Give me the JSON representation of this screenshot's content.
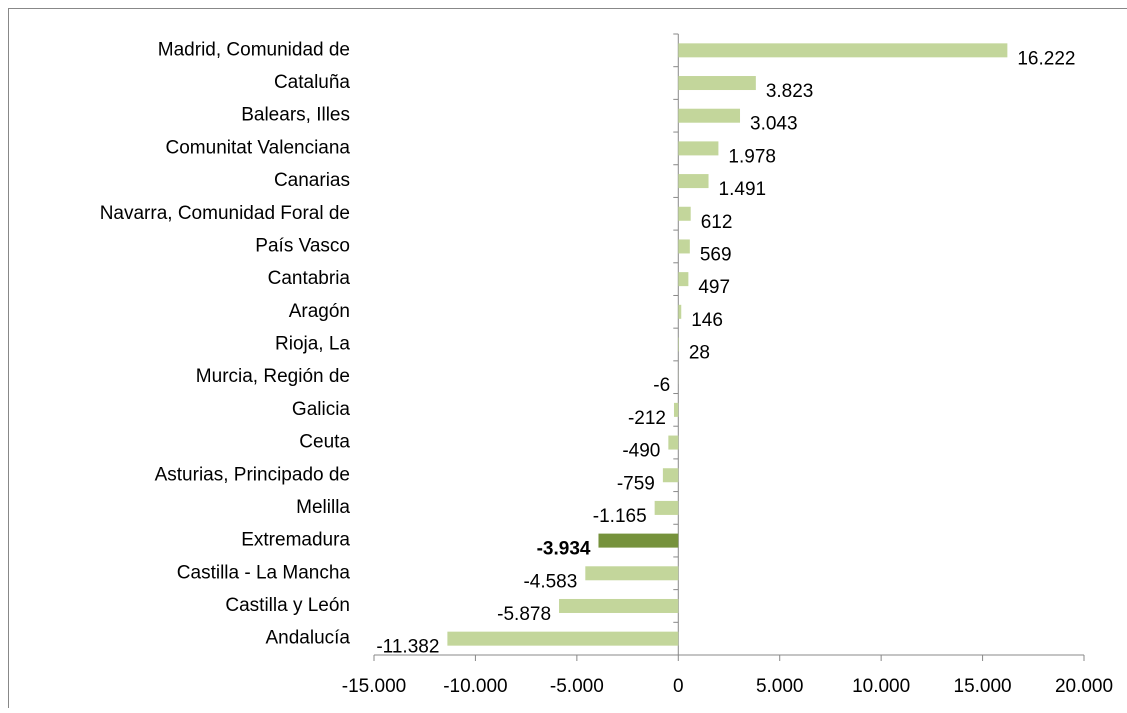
{
  "chart_data": {
    "type": "hbar",
    "categories": [
      "Madrid, Comunidad de",
      "Cataluña",
      "Balears, Illes",
      "Comunitat Valenciana",
      "Canarias",
      "Navarra, Comunidad  Foral de",
      "País Vasco",
      "Cantabria",
      "Aragón",
      "Rioja, La",
      "Murcia, Región de",
      "Galicia",
      "Ceuta",
      "Asturias, Principado de",
      "Melilla",
      "Extremadura",
      "Castilla - La Mancha",
      "Castilla y León",
      "Andalucía"
    ],
    "values": [
      16222,
      3823,
      3043,
      1978,
      1491,
      612,
      569,
      497,
      146,
      28,
      -6,
      -212,
      -490,
      -759,
      -1165,
      -3934,
      -4583,
      -5878,
      -11382
    ],
    "value_labels": [
      "16.222",
      "3.823",
      "3.043",
      "1.978",
      "1.491",
      "612",
      "569",
      "497",
      "146",
      "28",
      "-6",
      "-212",
      "-490",
      "-759",
      "-1.165",
      "-3.934",
      "-4.583",
      "-5.878",
      "-11.382"
    ],
    "color": "#c3d69b",
    "highlight": {
      "index": 15,
      "color": "#76923c"
    },
    "xlim": [
      -15000,
      20000
    ],
    "xticks": [
      {
        "value": -15000,
        "label": "-15.000"
      },
      {
        "value": -10000,
        "label": "-10.000"
      },
      {
        "value": -5000,
        "label": "-5.000"
      },
      0,
      {
        "value": 5000,
        "label": "5.000"
      },
      {
        "value": 10000,
        "label": "10.000"
      },
      {
        "value": 15000,
        "label": "15.000"
      },
      {
        "value": 20000,
        "label": "20.000"
      }
    ]
  }
}
